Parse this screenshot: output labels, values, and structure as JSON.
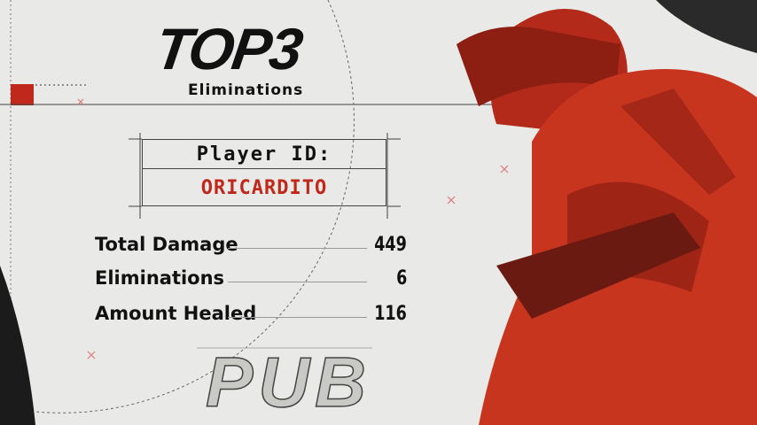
{
  "header": {
    "title": "TOP3",
    "subtitle": "Eliminations"
  },
  "player": {
    "label": "Player ID:",
    "id": "ORICARDITO"
  },
  "stats": [
    {
      "label": "Total Damage",
      "value": "449"
    },
    {
      "label": "Eliminations",
      "value": "6"
    },
    {
      "label": "Amount Healed",
      "value": "116"
    }
  ],
  "background_text": "PUB",
  "colors": {
    "accent": "#c0281c",
    "background": "#e9e9e7",
    "character": "#c8351f"
  }
}
